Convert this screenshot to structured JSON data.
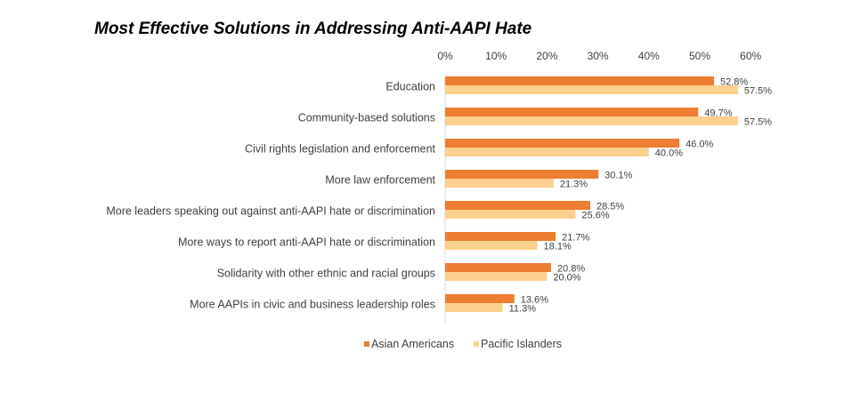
{
  "colors": {
    "asian": "#ED7D31",
    "pacific": "#FCD08E",
    "text": "#404040",
    "axis": "#D9D9D9"
  },
  "chart_data": {
    "type": "bar",
    "orientation": "horizontal",
    "title": "Most Effective Solutions in Addressing Anti-AAPI Hate",
    "xlim": [
      0,
      60
    ],
    "x_ticks": [
      "0%",
      "10%",
      "20%",
      "30%",
      "40%",
      "50%",
      "60%"
    ],
    "x_tick_values": [
      0,
      10,
      20,
      30,
      40,
      50,
      60
    ],
    "axis_position": "top",
    "grid": false,
    "legend_position": "bottom",
    "categories": [
      "Education",
      "Community-based solutions",
      "Civil rights legislation and enforcement",
      "More law enforcement",
      "More leaders speaking out against anti-AAPI hate or discrimination",
      "More ways to report anti-AAPI hate or discrimination",
      "Solidarity with other ethnic and racial groups",
      "More AAPIs in civic and business leadership roles"
    ],
    "series": [
      {
        "name": "Asian Americans",
        "values": [
          52.8,
          49.7,
          46.0,
          30.1,
          28.5,
          21.7,
          20.8,
          13.6
        ],
        "labels": [
          "52.8%",
          "49.7%",
          "46.0%",
          "30.1%",
          "28.5%",
          "21.7%",
          "20.8%",
          "13.6%"
        ]
      },
      {
        "name": "Pacific Islanders",
        "values": [
          57.5,
          57.5,
          40.0,
          21.3,
          25.6,
          18.1,
          20.0,
          11.3
        ],
        "labels": [
          "57.5%",
          "57.5%",
          "40.0%",
          "21.3%",
          "25.6%",
          "18.1%",
          "20.0%",
          "11.3%"
        ]
      }
    ]
  }
}
